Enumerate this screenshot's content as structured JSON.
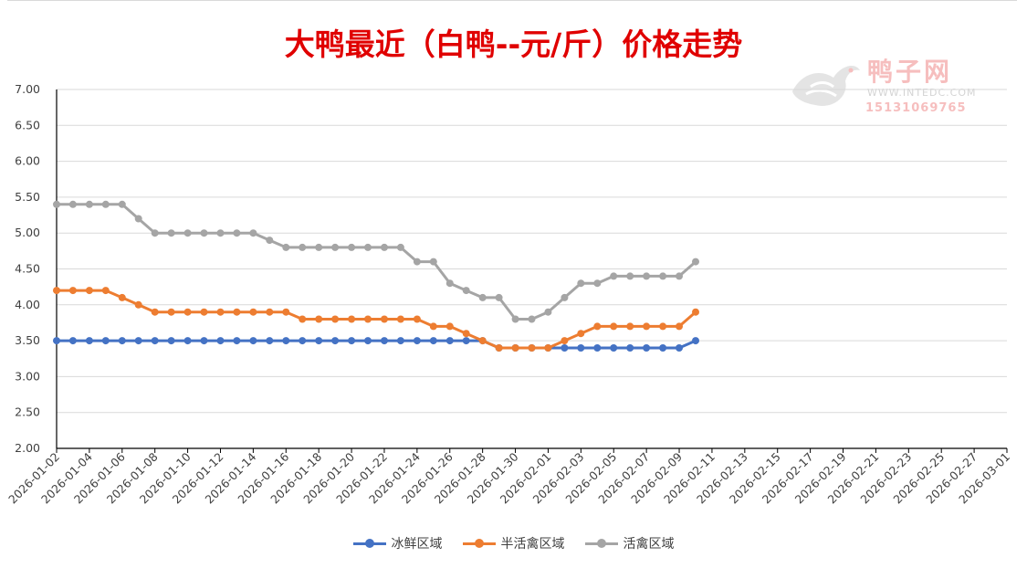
{
  "title": "大鸭最近（白鸭--元/斤）价格走势",
  "watermark": {
    "name": "鸭子网",
    "url": "WWW.INTEDC.COM",
    "phone": "15131069765"
  },
  "colors": {
    "series_1": "#4472c4",
    "series_2": "#ed7d31",
    "series_3": "#a5a5a5",
    "title": "#e00000",
    "grid": "#d9d9d9"
  },
  "chart_data": {
    "type": "line",
    "title": "大鸭最近（白鸭--元/斤）价格走势",
    "xlabel": "",
    "ylabel": "",
    "ylim": [
      2.0,
      7.0
    ],
    "y_ticks": [
      "2.00",
      "2.50",
      "3.00",
      "3.50",
      "4.00",
      "4.50",
      "5.00",
      "5.50",
      "6.00",
      "6.50",
      "7.00"
    ],
    "x_range": [
      "2026-01-02",
      "2026-03-01"
    ],
    "x_tick_labels": [
      "2026-01-02",
      "2026-01-04",
      "2026-01-06",
      "2026-01-08",
      "2026-01-10",
      "2026-01-12",
      "2026-01-14",
      "2026-01-16",
      "2026-01-18",
      "2026-01-20",
      "2026-01-22",
      "2026-01-24",
      "2026-01-26",
      "2026-01-28",
      "2026-01-30",
      "2026-02-01",
      "2026-02-03",
      "2026-02-05",
      "2026-02-07",
      "2026-02-09",
      "2026-02-11",
      "2026-02-13",
      "2026-02-15",
      "2026-02-17",
      "2026-02-19",
      "2026-02-21",
      "2026-02-23",
      "2026-02-25",
      "2026-02-27",
      "2026-03-01"
    ],
    "x": [
      "2026-01-02",
      "2026-01-03",
      "2026-01-04",
      "2026-01-05",
      "2026-01-06",
      "2026-01-07",
      "2026-01-08",
      "2026-01-09",
      "2026-01-10",
      "2026-01-11",
      "2026-01-12",
      "2026-01-13",
      "2026-01-14",
      "2026-01-15",
      "2026-01-16",
      "2026-01-17",
      "2026-01-18",
      "2026-01-19",
      "2026-01-20",
      "2026-01-21",
      "2026-01-22",
      "2026-01-23",
      "2026-01-24",
      "2026-01-25",
      "2026-01-26",
      "2026-01-27",
      "2026-01-28",
      "2026-01-29",
      "2026-01-30",
      "2026-01-31",
      "2026-02-01",
      "2026-02-02",
      "2026-02-03",
      "2026-02-04",
      "2026-02-05",
      "2026-02-06",
      "2026-02-07",
      "2026-02-08",
      "2026-02-09",
      "2026-02-10"
    ],
    "series": [
      {
        "name": "冰鲜区域",
        "color": "#4472c4",
        "values": [
          3.5,
          3.5,
          3.5,
          3.5,
          3.5,
          3.5,
          3.5,
          3.5,
          3.5,
          3.5,
          3.5,
          3.5,
          3.5,
          3.5,
          3.5,
          3.5,
          3.5,
          3.5,
          3.5,
          3.5,
          3.5,
          3.5,
          3.5,
          3.5,
          3.5,
          3.5,
          3.5,
          3.4,
          3.4,
          3.4,
          3.4,
          3.4,
          3.4,
          3.4,
          3.4,
          3.4,
          3.4,
          3.4,
          3.4,
          3.5
        ]
      },
      {
        "name": "半活禽区域",
        "color": "#ed7d31",
        "values": [
          4.2,
          4.2,
          4.2,
          4.2,
          4.1,
          4.0,
          3.9,
          3.9,
          3.9,
          3.9,
          3.9,
          3.9,
          3.9,
          3.9,
          3.9,
          3.8,
          3.8,
          3.8,
          3.8,
          3.8,
          3.8,
          3.8,
          3.8,
          3.7,
          3.7,
          3.6,
          3.5,
          3.4,
          3.4,
          3.4,
          3.4,
          3.5,
          3.6,
          3.7,
          3.7,
          3.7,
          3.7,
          3.7,
          3.7,
          3.9
        ]
      },
      {
        "name": "活禽区域",
        "color": "#a5a5a5",
        "values": [
          5.4,
          5.4,
          5.4,
          5.4,
          5.4,
          5.2,
          5.0,
          5.0,
          5.0,
          5.0,
          5.0,
          5.0,
          5.0,
          4.9,
          4.8,
          4.8,
          4.8,
          4.8,
          4.8,
          4.8,
          4.8,
          4.8,
          4.6,
          4.6,
          4.3,
          4.2,
          4.1,
          4.1,
          3.8,
          3.8,
          3.9,
          4.1,
          4.3,
          4.3,
          4.4,
          4.4,
          4.4,
          4.4,
          4.4,
          4.6
        ]
      }
    ],
    "grid": true,
    "legend": "bottom"
  }
}
